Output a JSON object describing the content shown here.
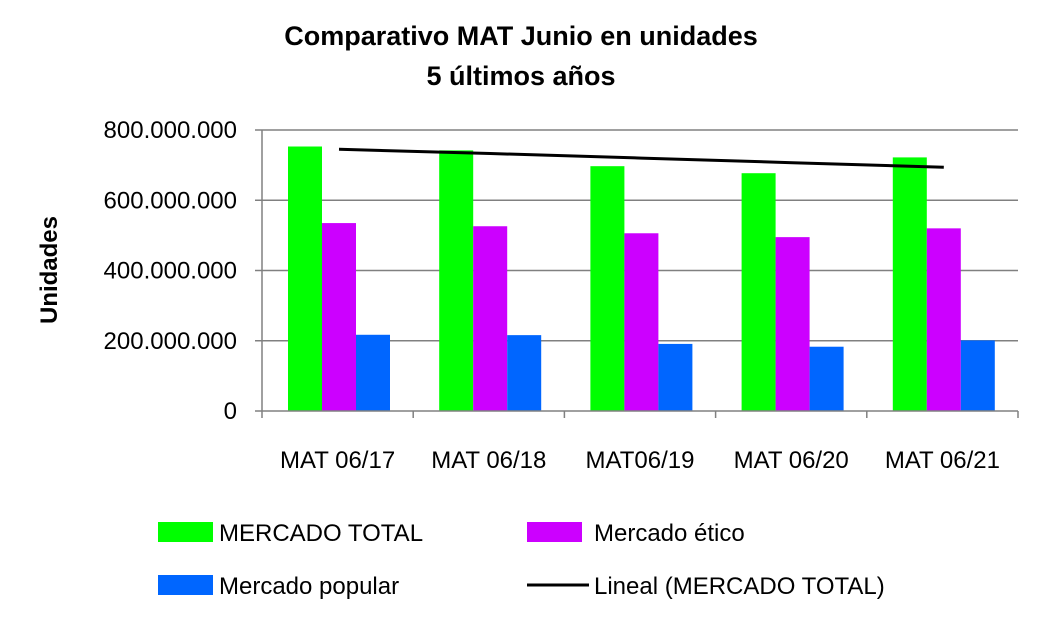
{
  "chart_data": {
    "type": "bar",
    "title_lines": [
      "Comparativo MAT Junio en unidades",
      "5 últimos años"
    ],
    "xlabel": "",
    "ylabel": "Unidades",
    "categories": [
      "MAT 06/17",
      "MAT 06/18",
      "MAT06/19",
      "MAT 06/20",
      "MAT 06/21"
    ],
    "ylim": [
      0,
      800000000
    ],
    "yticks": [
      0,
      200000000,
      400000000,
      600000000,
      800000000
    ],
    "ytick_labels": [
      "0",
      "200.000.000",
      "400.000.000",
      "600.000.000",
      "800.000.000"
    ],
    "grid": true,
    "legend_position": "bottom",
    "series": [
      {
        "name": "MERCADO TOTAL",
        "color": "#00ff00",
        "values": [
          753000000,
          742000000,
          697000000,
          677000000,
          722000000
        ]
      },
      {
        "name": "Mercado ético",
        "color": "#cc00ff",
        "values": [
          535000000,
          526000000,
          506000000,
          495000000,
          520000000
        ]
      },
      {
        "name": "Mercado popular",
        "color": "#0066ff",
        "values": [
          217000000,
          216000000,
          191000000,
          183000000,
          201000000
        ]
      }
    ],
    "trendline": {
      "name": "Lineal (MERCADO TOTAL)",
      "color": "#000000",
      "values": [
        745000000,
        733000000,
        720000000,
        707000000,
        694000000
      ]
    }
  }
}
